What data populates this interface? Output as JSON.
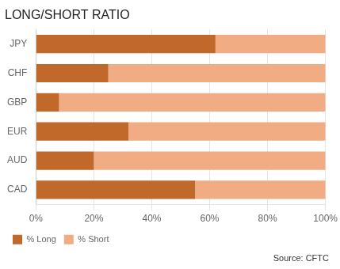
{
  "chart_data": {
    "type": "bar",
    "orientation": "horizontal",
    "stacked": true,
    "title": "LONG/SHORT RATIO",
    "categories": [
      "JPY",
      "CHF",
      "GBP",
      "EUR",
      "AUD",
      "CAD"
    ],
    "series": [
      {
        "name": "% Long",
        "color": "#C0692A",
        "values": [
          62,
          25,
          8,
          32,
          20,
          55
        ]
      },
      {
        "name": "% Short",
        "color": "#F2AC84",
        "values": [
          38,
          75,
          92,
          68,
          80,
          45
        ]
      }
    ],
    "xlim": [
      0,
      100
    ],
    "xticks": [
      {
        "value": 0,
        "label": "0%"
      },
      {
        "value": 20,
        "label": "20%"
      },
      {
        "value": 40,
        "label": "40%"
      },
      {
        "value": 60,
        "label": "60%"
      },
      {
        "value": 80,
        "label": "80%"
      },
      {
        "value": 100,
        "label": "100%"
      }
    ],
    "grid": true,
    "legend": "bottom",
    "annotation": "Source: CFTC"
  }
}
